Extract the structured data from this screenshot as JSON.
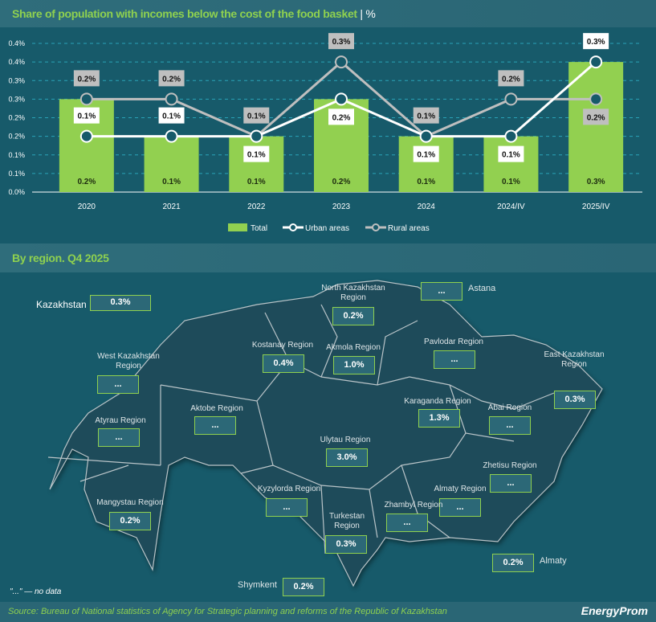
{
  "chart_title": "Share of population with incomes below the cost of the food basket",
  "chart_unit": "%",
  "chart_data": {
    "type": "bar",
    "title": "Share of population with incomes below the cost of the food basket | %",
    "categories": [
      "2020",
      "2021",
      "2022",
      "2023",
      "2024",
      "2024/IV",
      "2025/IV"
    ],
    "ylim": [
      0,
      0.4
    ],
    "yticks": [
      0.0,
      0.05,
      0.1,
      0.15,
      0.2,
      0.25,
      0.3,
      0.35,
      0.4
    ],
    "ytick_labels": [
      "0.0%",
      "0.1%",
      "0.1%",
      "0.2%",
      "0.2%",
      "0.3%",
      "0.3%",
      "0.4%",
      "0.4%"
    ],
    "legend_position": "bottom",
    "grid": true,
    "series": [
      {
        "name": "Total",
        "kind": "bar",
        "color": "#92d050",
        "values": [
          0.25,
          0.15,
          0.15,
          0.25,
          0.15,
          0.15,
          0.35
        ],
        "labels": [
          "0.2%",
          "0.1%",
          "0.1%",
          "0.2%",
          "0.1%",
          "0.1%",
          "0.3%"
        ]
      },
      {
        "name": "Urban areas",
        "kind": "line",
        "color": "#ffffff",
        "values": [
          0.15,
          0.15,
          0.15,
          0.25,
          0.15,
          0.15,
          0.35
        ],
        "labels": [
          "0.1%",
          "0.1%",
          "0.1%",
          "0.2%",
          "0.1%",
          "0.1%",
          "0.3%"
        ]
      },
      {
        "name": "Rural areas",
        "kind": "line",
        "color": "#bfbfbf",
        "values": [
          0.25,
          0.25,
          0.15,
          0.35,
          0.15,
          0.25,
          0.25
        ],
        "labels": [
          "0.2%",
          "0.2%",
          "0.1%",
          "0.3%",
          "0.1%",
          "0.2%",
          "0.2%"
        ]
      }
    ]
  },
  "region_title": "By region. Q4 2025",
  "kazakhstan": {
    "label": "Kazakhstan",
    "value": "0.3%"
  },
  "regions": [
    {
      "name": "North Kazakhstan Region",
      "value": "0.2%"
    },
    {
      "name": "Kostanay Region",
      "value": "0.4%"
    },
    {
      "name": "Akmola Region",
      "value": "1.0%"
    },
    {
      "name": "Pavlodar Region",
      "value": "..."
    },
    {
      "name": "West Kazakhstan Region",
      "value": "..."
    },
    {
      "name": "East Kazakhstan Region",
      "value": "0.3%"
    },
    {
      "name": "Karaganda Region",
      "value": "1.3%"
    },
    {
      "name": "Abai Region",
      "value": "..."
    },
    {
      "name": "Aktobe Region",
      "value": "..."
    },
    {
      "name": "Atyrau Region",
      "value": "..."
    },
    {
      "name": "Ulytau Region",
      "value": "3.0%"
    },
    {
      "name": "Zhetisu Region",
      "value": "..."
    },
    {
      "name": "Kyzylorda Region",
      "value": "..."
    },
    {
      "name": "Almaty Region",
      "value": "..."
    },
    {
      "name": "Zhambyl Region",
      "value": "..."
    },
    {
      "name": "Mangystau Region",
      "value": "0.2%"
    },
    {
      "name": "Turkestan Region",
      "value": "0.3%"
    }
  ],
  "cities": [
    {
      "name": "Astana",
      "value": "..."
    },
    {
      "name": "Almaty",
      "value": "0.2%"
    },
    {
      "name": "Shymkent",
      "value": "0.2%"
    }
  ],
  "note": "\"...\" — no data",
  "source": "Source: Bureau of National statistics of Agency for Strategic planning and reforms of the Republic of Kazakhstan",
  "logo": "EnergyProm"
}
